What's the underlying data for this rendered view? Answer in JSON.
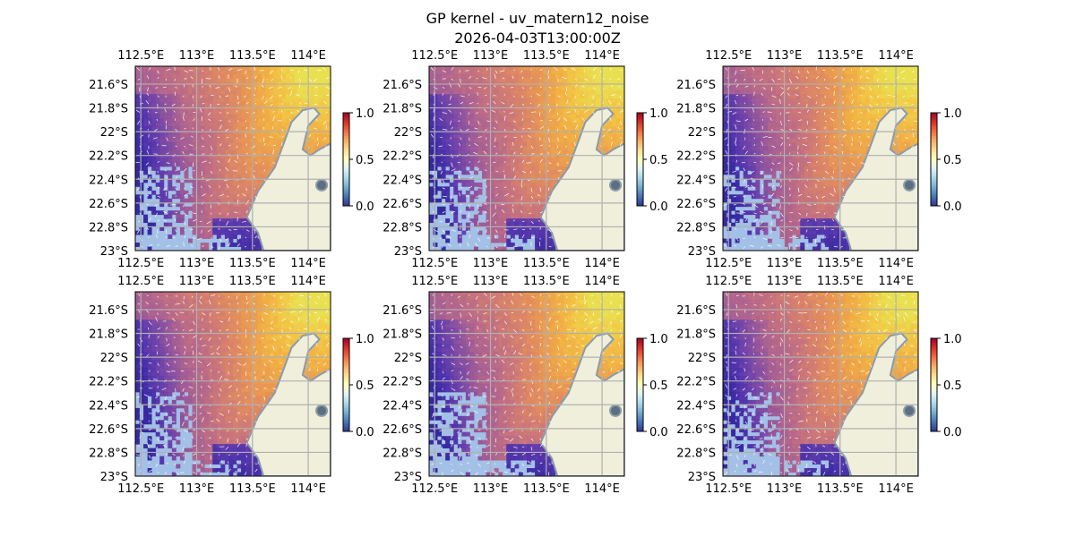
{
  "figure": {
    "title": "GP kernel - uv_matern12_noise",
    "subtitle": "2026-04-03T13:00:00Z"
  },
  "chart_data": [
    {
      "type": "heatmap",
      "panel": 1,
      "xlim": [
        112.45,
        114.2
      ],
      "ylim": [
        -23.0,
        -21.45
      ],
      "xticks": [
        112.5,
        113.0,
        113.5,
        114.0
      ],
      "yticks": [
        -21.6,
        -21.8,
        -22.0,
        -22.2,
        -22.4,
        -22.6,
        -22.8,
        -23.0
      ],
      "xtick_labels": [
        "112.5°E",
        "113°E",
        "113.5°E",
        "114°E"
      ],
      "ytick_labels": [
        "21.6°S",
        "21.8°S",
        "22°S",
        "22.2°S",
        "22.4°S",
        "22.6°S",
        "22.8°S",
        "23°S"
      ],
      "colorbar": {
        "range": [
          0.0,
          1.0
        ],
        "ticks": [
          "0.0",
          "0.5",
          "1.0"
        ]
      },
      "grid": true,
      "field_pattern": "high (~0.85) toward northeast, low (~0.1) along southwest coast, land masked to east"
    },
    {
      "type": "heatmap",
      "panel": 2,
      "xlim": [
        112.45,
        114.2
      ],
      "ylim": [
        -23.0,
        -21.45
      ],
      "xticks": [
        112.5,
        113.0,
        113.5,
        114.0
      ],
      "yticks": [
        -21.6,
        -21.8,
        -22.0,
        -22.2,
        -22.4,
        -22.6,
        -22.8,
        -23.0
      ],
      "xtick_labels": [
        "112.5°E",
        "113°E",
        "113.5°E",
        "114°E"
      ],
      "ytick_labels": [
        "21.6°S",
        "21.8°S",
        "22°S",
        "22.2°S",
        "22.4°S",
        "22.6°S",
        "22.8°S",
        "23°S"
      ],
      "colorbar": {
        "range": [
          0.0,
          1.0
        ],
        "ticks": [
          "0.0",
          "0.5",
          "1.0"
        ]
      },
      "grid": true,
      "field_pattern": "high (~0.85) toward northeast, low (~0.1) along southwest coast, land masked to east"
    },
    {
      "type": "heatmap",
      "panel": 3,
      "xlim": [
        112.45,
        114.2
      ],
      "ylim": [
        -23.0,
        -21.45
      ],
      "xticks": [
        112.5,
        113.0,
        113.5,
        114.0
      ],
      "yticks": [
        -21.6,
        -21.8,
        -22.0,
        -22.2,
        -22.4,
        -22.6,
        -22.8,
        -23.0
      ],
      "xtick_labels": [
        "112.5°E",
        "113°E",
        "113.5°E",
        "114°E"
      ],
      "ytick_labels": [
        "21.6°S",
        "21.8°S",
        "22°S",
        "22.2°S",
        "22.4°S",
        "22.6°S",
        "22.8°S",
        "23°S"
      ],
      "colorbar": {
        "range": [
          0.0,
          1.0
        ],
        "ticks": [
          "0.0",
          "0.5",
          "1.0"
        ]
      },
      "grid": true,
      "field_pattern": "high (~0.85) toward northeast, low (~0.1) along southwest coast, land masked to east"
    },
    {
      "type": "heatmap",
      "panel": 4,
      "xlim": [
        112.45,
        114.2
      ],
      "ylim": [
        -23.0,
        -21.45
      ],
      "xticks": [
        112.5,
        113.0,
        113.5,
        114.0
      ],
      "yticks": [
        -21.6,
        -21.8,
        -22.0,
        -22.2,
        -22.4,
        -22.6,
        -22.8,
        -23.0
      ],
      "xtick_labels": [
        "112.5°E",
        "113°E",
        "113.5°E",
        "114°E"
      ],
      "ytick_labels": [
        "21.6°S",
        "21.8°S",
        "22°S",
        "22.2°S",
        "22.4°S",
        "22.6°S",
        "22.8°S",
        "23°S"
      ],
      "colorbar": {
        "range": [
          0.0,
          1.0
        ],
        "ticks": [
          "0.0",
          "0.5",
          "1.0"
        ]
      },
      "grid": true,
      "field_pattern": "high (~0.85) toward northeast, low (~0.1) along southwest coast, land masked to east"
    },
    {
      "type": "heatmap",
      "panel": 5,
      "xlim": [
        112.45,
        114.2
      ],
      "ylim": [
        -23.0,
        -21.45
      ],
      "xticks": [
        112.5,
        113.0,
        113.5,
        114.0
      ],
      "yticks": [
        -21.6,
        -21.8,
        -22.0,
        -22.2,
        -22.4,
        -22.6,
        -22.8,
        -23.0
      ],
      "xtick_labels": [
        "112.5°E",
        "113°E",
        "113.5°E",
        "114°E"
      ],
      "ytick_labels": [
        "21.6°S",
        "21.8°S",
        "22°S",
        "22.2°S",
        "22.4°S",
        "22.6°S",
        "22.8°S",
        "23°S"
      ],
      "colorbar": {
        "range": [
          0.0,
          1.0
        ],
        "ticks": [
          "0.0",
          "0.5",
          "1.0"
        ]
      },
      "grid": true,
      "field_pattern": "high (~0.85) toward northeast, low (~0.1) along southwest coast, land masked to east"
    },
    {
      "type": "heatmap",
      "panel": 6,
      "xlim": [
        112.45,
        114.2
      ],
      "ylim": [
        -23.0,
        -21.45
      ],
      "xticks": [
        112.5,
        113.0,
        113.5,
        114.0
      ],
      "yticks": [
        -21.6,
        -21.8,
        -22.0,
        -22.2,
        -22.4,
        -22.6,
        -22.8,
        -23.0
      ],
      "xtick_labels": [
        "112.5°E",
        "113°E",
        "113.5°E",
        "114°E"
      ],
      "ytick_labels": [
        "21.6°S",
        "21.8°S",
        "22°S",
        "22.2°S",
        "22.4°S",
        "22.6°S",
        "22.8°S",
        "23°S"
      ],
      "colorbar": {
        "range": [
          0.0,
          1.0
        ],
        "ticks": [
          "0.0",
          "0.5",
          "1.0"
        ]
      },
      "grid": true,
      "field_pattern": "high (~0.85) toward northeast, low (~0.1) along southwest coast, land masked to east"
    }
  ],
  "colors": {
    "ocean": "#a3c0e6",
    "land": "#efefdb",
    "coastline": "#8c9aa8",
    "grid": "#b0b0b0",
    "vectors": "#ffffff",
    "colormap": [
      "#313695",
      "#4575b4",
      "#74add1",
      "#abd9e9",
      "#e0f3f8",
      "#ffffbf",
      "#fee090",
      "#fdae61",
      "#f46d43",
      "#d73027",
      "#a50026"
    ]
  }
}
